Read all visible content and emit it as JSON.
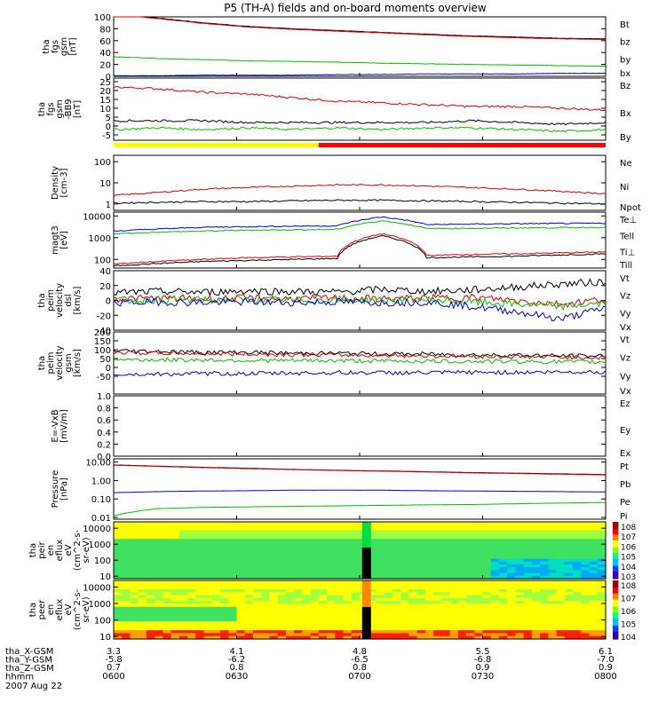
{
  "title": "P5 (TH-A) fields and on-board moments overview",
  "chart_data": [
    {
      "type": "line",
      "ylabel": [
        "tha",
        "fgs",
        "gsm",
        "[nT]"
      ],
      "ylim": [
        0,
        100
      ],
      "yticks": [
        "100",
        "80",
        "60",
        "40",
        "20",
        "0"
      ],
      "yvals": [
        100,
        80,
        60,
        40,
        20,
        0
      ],
      "series": [
        {
          "name": "Bt",
          "color": "#000000",
          "values": [
            105,
            98,
            90,
            84,
            80,
            77,
            74,
            71,
            68,
            66,
            64,
            63
          ]
        },
        {
          "name": "bz",
          "color": "#dd0000",
          "values": [
            104,
            97,
            89,
            83,
            79,
            76,
            73,
            70,
            67,
            65,
            63,
            62
          ]
        },
        {
          "name": "by",
          "color": "#00c000",
          "values": [
            33,
            30,
            28,
            26,
            25,
            24,
            22,
            21,
            20,
            19,
            18,
            17
          ]
        },
        {
          "name": "bx",
          "color": "#0000dd",
          "values": [
            1,
            1,
            2,
            2,
            2,
            3,
            3,
            4,
            4,
            4,
            5,
            5
          ]
        }
      ]
    },
    {
      "type": "line",
      "ylabel": [
        "tha",
        "fgs",
        "gsm",
        "-BB9",
        "[nT]"
      ],
      "ylim": [
        -8,
        27
      ],
      "yticks": [
        "25",
        "20",
        "15",
        "10",
        "5",
        "0",
        "-5"
      ],
      "yvals": [
        25,
        20,
        15,
        10,
        5,
        0,
        -5
      ],
      "series": [
        {
          "name": "Bz",
          "color": "#dd0000",
          "values": [
            22,
            21,
            19,
            18,
            16,
            14,
            13,
            12,
            11,
            11,
            10,
            9
          ]
        },
        {
          "name": "Bx",
          "color": "#000000",
          "values": [
            3,
            3,
            3,
            2,
            2,
            2,
            2,
            2,
            3,
            2,
            1,
            2
          ]
        },
        {
          "name": "By",
          "color": "#00c000",
          "values": [
            -2,
            -1,
            -2,
            -1,
            -2,
            -1,
            -2,
            -1,
            -1,
            -2,
            -3,
            -2
          ]
        }
      ]
    },
    {
      "type": "line",
      "ylabel": [
        "Density",
        "[cm-3]"
      ],
      "scale": "log",
      "ylim": [
        0.5,
        200
      ],
      "yticks": [
        "100",
        "10",
        "1"
      ],
      "yvals": [
        100,
        10,
        1
      ],
      "series": [
        {
          "name": "Ne",
          "color": "#dd0000",
          "values": [
            2.5,
            3.5,
            5,
            6,
            7,
            8,
            8,
            7,
            6,
            5,
            4,
            3
          ]
        },
        {
          "name": "Ni",
          "color": "#000000",
          "values": [
            1.1,
            1.2,
            1.3,
            1.3,
            1.4,
            1.5,
            1.5,
            1.4,
            1.3,
            1.2,
            1.1,
            1.0
          ]
        },
        {
          "name": "Npot",
          "color": "#0000dd",
          "values": []
        }
      ]
    },
    {
      "type": "line",
      "ylabel": [
        "magt3",
        "[eV]"
      ],
      "scale": "log",
      "ylim": [
        40,
        15000
      ],
      "yticks": [
        "10000",
        "1000",
        "100"
      ],
      "yvals": [
        10000,
        1000,
        100
      ],
      "series": [
        {
          "name": "Te⊥",
          "color": "#dd0000",
          "values": [
            60,
            80,
            100,
            120,
            130,
            140,
            1500,
            150,
            170,
            180,
            200,
            220
          ]
        },
        {
          "name": "Tell",
          "color": "#000000",
          "values": [
            50,
            65,
            80,
            90,
            100,
            110,
            1200,
            120,
            130,
            140,
            160,
            180
          ]
        },
        {
          "name": "Ti⊥",
          "color": "#0000dd",
          "values": [
            2000,
            2500,
            3000,
            3200,
            3400,
            3500,
            9000,
            4000,
            4200,
            4400,
            4500,
            4600
          ]
        },
        {
          "name": "Till",
          "color": "#00c000",
          "values": [
            1500,
            1800,
            2000,
            2200,
            2300,
            2400,
            6000,
            2600,
            2700,
            2800,
            2900,
            3000
          ]
        }
      ]
    },
    {
      "type": "line",
      "ylabel": [
        "tha",
        "peim",
        "velocity",
        "dsl",
        "[km/s]"
      ],
      "ylim": [
        -40,
        40
      ],
      "yticks": [
        "40",
        "20",
        "0",
        "-20",
        "-40"
      ],
      "yvals": [
        40,
        20,
        0,
        -20,
        -40
      ],
      "series": [
        {
          "name": "Vt",
          "color": "#000000",
          "values": [
            10,
            12,
            11,
            13,
            12,
            11,
            15,
            12,
            14,
            18,
            22,
            25
          ]
        },
        {
          "name": "Vz",
          "color": "#dd0000",
          "values": [
            2,
            3,
            2,
            3,
            2,
            3,
            2,
            3,
            4,
            0,
            -5,
            2
          ]
        },
        {
          "name": "Vy",
          "color": "#00c000",
          "values": [
            0,
            1,
            0,
            1,
            0,
            1,
            0,
            1,
            -2,
            -5,
            -8,
            -4
          ]
        },
        {
          "name": "Vx",
          "color": "#0000dd",
          "values": [
            -3,
            -2,
            -3,
            -2,
            -3,
            -2,
            -3,
            -2,
            -8,
            -15,
            -25,
            -10
          ]
        }
      ]
    },
    {
      "type": "line",
      "ylabel": [
        "tha",
        "peim",
        "velocity",
        "gsm",
        "[km/s]"
      ],
      "ylim": [
        -150,
        200
      ],
      "yticks": [
        "200",
        "150",
        "100",
        "50",
        "0",
        "-50"
      ],
      "yvals": [
        200,
        150,
        100,
        50,
        0,
        -50
      ],
      "series": [
        {
          "name": "Vt",
          "color": "#000000",
          "values": [
            95,
            90,
            85,
            85,
            80,
            80,
            75,
            75,
            70,
            70,
            65,
            65
          ]
        },
        {
          "name": "Vz",
          "color": "#dd0000",
          "values": [
            85,
            80,
            78,
            75,
            72,
            70,
            68,
            65,
            62,
            60,
            58,
            55
          ]
        },
        {
          "name": "Vy",
          "color": "#00c000",
          "values": [
            45,
            42,
            42,
            40,
            38,
            38,
            36,
            35,
            34,
            33,
            32,
            30
          ]
        },
        {
          "name": "Vx",
          "color": "#0000dd",
          "values": [
            -40,
            -38,
            -35,
            -35,
            -32,
            -30,
            -30,
            -30,
            -28,
            -28,
            -26,
            -25
          ]
        }
      ]
    },
    {
      "type": "line",
      "ylabel": [
        "E=-VxB",
        "[mV/m]"
      ],
      "ylim": [
        0,
        1
      ],
      "yticks": [
        "1.0",
        "0.8",
        "0.6",
        "0.4",
        "0.2",
        "0.0"
      ],
      "yvals": [
        1.0,
        0.8,
        0.6,
        0.4,
        0.2,
        0.0
      ],
      "series": [
        {
          "name": "Ez",
          "color": "#dd0000",
          "values": []
        },
        {
          "name": "Ey",
          "color": "#00c000",
          "values": []
        },
        {
          "name": "Ex",
          "color": "#0000dd",
          "values": []
        }
      ]
    },
    {
      "type": "line",
      "ylabel": [
        "Pressure",
        "[nPa]"
      ],
      "scale": "log",
      "ylim": [
        0.008,
        15
      ],
      "yticks": [
        "10.00",
        "1.00",
        "0.10",
        "0.01"
      ],
      "yvals": [
        10,
        1,
        0.1,
        0.01
      ],
      "series": [
        {
          "name": "Pt",
          "color": "#000000",
          "values": [
            7,
            6,
            5.2,
            4.6,
            4.0,
            3.6,
            3.3,
            3.0,
            2.7,
            2.5,
            2.3,
            2.1
          ]
        },
        {
          "name": "Pb",
          "color": "#dd0000",
          "values": [
            6.8,
            5.8,
            5.0,
            4.4,
            3.9,
            3.5,
            3.2,
            2.9,
            2.6,
            2.4,
            2.2,
            2.0
          ]
        },
        {
          "name": "Pe",
          "color": "#0000dd",
          "values": [
            0.22,
            0.25,
            0.27,
            0.28,
            0.3,
            0.3,
            0.3,
            0.28,
            0.27,
            0.26,
            0.25,
            0.24
          ]
        },
        {
          "name": "Pi",
          "color": "#00c000",
          "values": [
            0.012,
            0.03,
            0.035,
            0.037,
            0.04,
            0.042,
            0.045,
            0.048,
            0.05,
            0.055,
            0.06,
            0.065
          ]
        }
      ]
    },
    {
      "type": "heatmap",
      "ylabel": [
        "tha",
        "peir",
        "en",
        "eflux",
        "eV",
        "(cm^2-s-",
        "sr-eV)"
      ],
      "scale": "log",
      "ylim": [
        7,
        25000
      ],
      "yticks": [
        "10000",
        "1000",
        "100",
        "10"
      ],
      "yvals": [
        10000,
        1000,
        100,
        10
      ],
      "colorbar_ticks": [
        "10^8",
        "10^7",
        "10^6",
        "10^5",
        "10^4",
        "10^3"
      ]
    },
    {
      "type": "heatmap",
      "ylabel": [
        "tha",
        "peer",
        "en",
        "eflux",
        "eV",
        "(cm^2-s-",
        "sr-eV)"
      ],
      "scale": "log",
      "ylim": [
        7,
        25000
      ],
      "yticks": [
        "10000",
        "1000",
        "100",
        "10"
      ],
      "yvals": [
        10000,
        1000,
        100,
        10
      ],
      "colorbar_ticks": [
        "10^8",
        "10^7",
        "10^6",
        "10^5",
        "10^4"
      ]
    }
  ],
  "x_axis": {
    "range": [
      "0600",
      "0800"
    ],
    "row_labels": [
      "tha_X-GSM",
      "tha_Y-GSM",
      "tha_Z-GSM",
      "hhmm"
    ],
    "columns": [
      {
        "X": "3.3",
        "Y": "-5.8",
        "Z": "0.7",
        "hhmm": "0600"
      },
      {
        "X": "4.1",
        "Y": "-6.2",
        "Z": "0.8",
        "hhmm": "0630"
      },
      {
        "X": "4.8",
        "Y": "-6.5",
        "Z": "0.8",
        "hhmm": "0700"
      },
      {
        "X": "5.5",
        "Y": "-6.8",
        "Z": "0.9",
        "hhmm": "0730"
      },
      {
        "X": "6.1",
        "Y": "-7.0",
        "Z": "0.9",
        "hhmm": "0800"
      }
    ],
    "date": "2007 Aug 22"
  },
  "mode_bar": {
    "yellow_end_hhmm": "0650",
    "colors": [
      "#ffff00",
      "#ff0000"
    ]
  }
}
